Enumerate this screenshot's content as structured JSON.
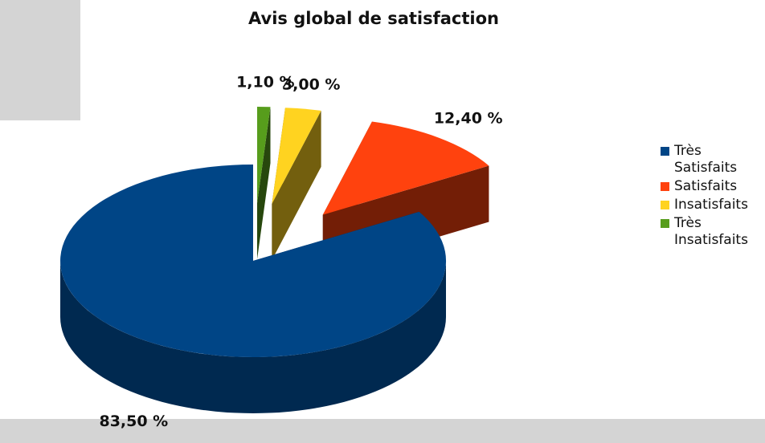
{
  "chart_data": {
    "type": "pie",
    "title": "Avis global de satisfaction",
    "categories": [
      "Très Satisfaits",
      "Satisfaits",
      "Insatisfaits",
      "Très Insatisfaits"
    ],
    "values": [
      83.5,
      12.4,
      3.0,
      1.1
    ],
    "value_labels": [
      "83,50 %",
      "12,40 %",
      "3,00 %",
      "1,10 %"
    ],
    "colors": [
      "#004586",
      "#ff420e",
      "#ffd320",
      "#579d1c"
    ],
    "legend": "right"
  }
}
